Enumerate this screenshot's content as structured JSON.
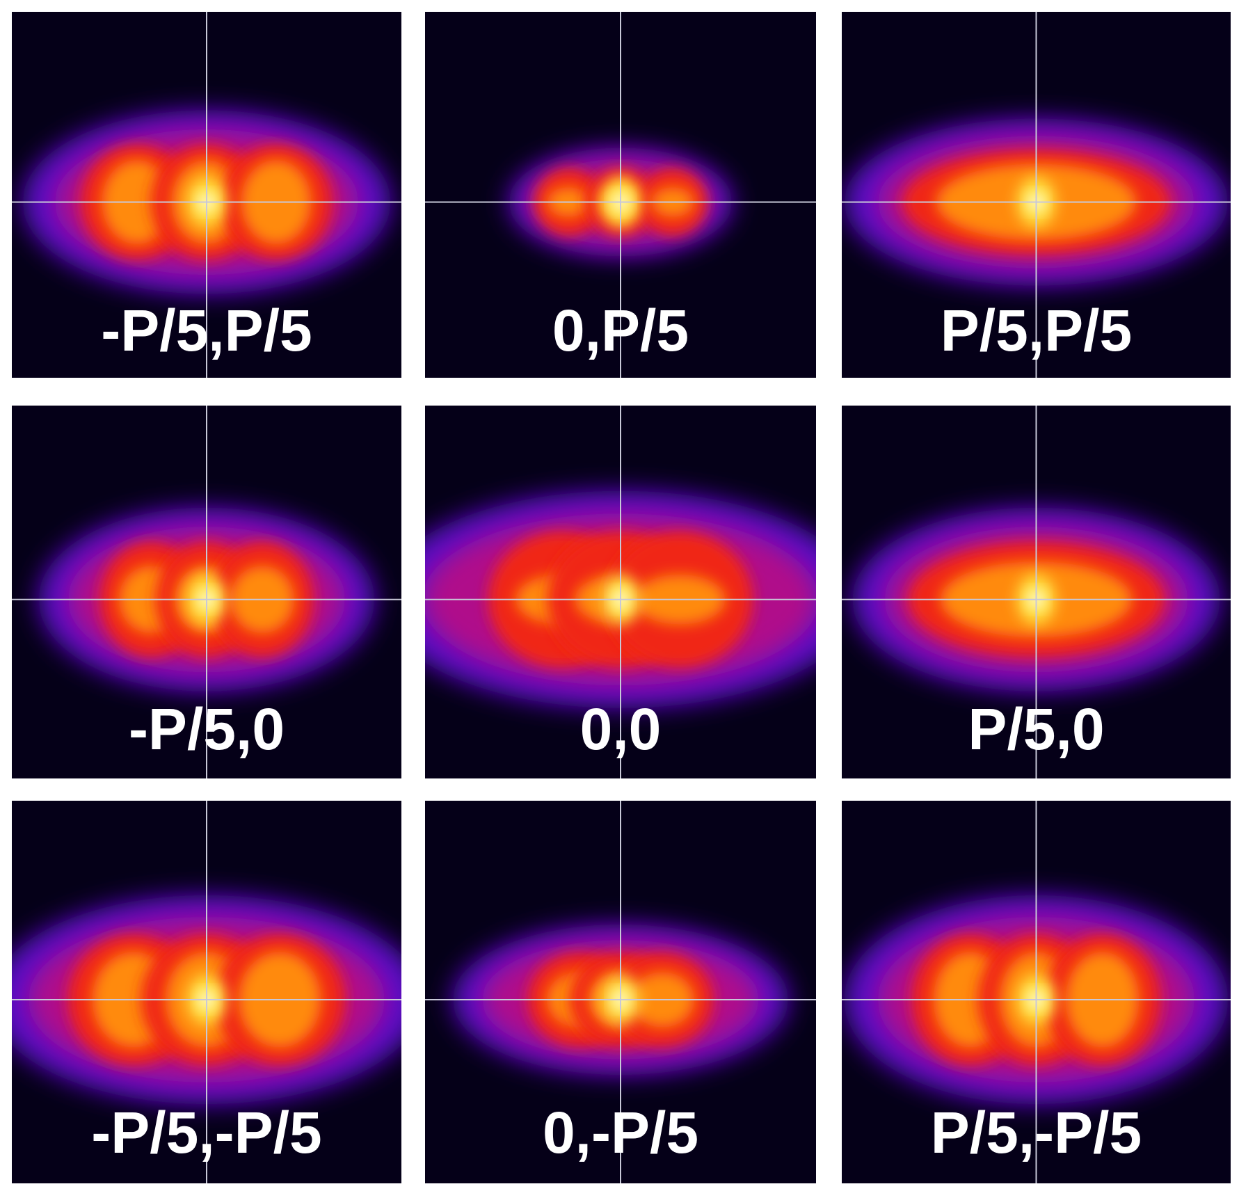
{
  "panels": [
    {
      "label": "-P/5,P/5"
    },
    {
      "label": "0,P/5"
    },
    {
      "label": "P/5,P/5"
    },
    {
      "label": "-P/5,0"
    },
    {
      "label": "0,0"
    },
    {
      "label": "P/5,0"
    },
    {
      "label": "-P/5,-P/5"
    },
    {
      "label": "0,-P/5"
    },
    {
      "label": "P/5,-P/5"
    }
  ]
}
